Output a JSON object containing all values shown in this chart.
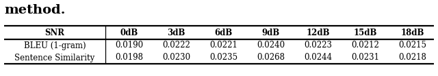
{
  "title_text": "method.",
  "columns": [
    "SNR",
    "0dB",
    "3dB",
    "6dB",
    "9dB",
    "12dB",
    "15dB",
    "18dB"
  ],
  "rows": [
    [
      "BLEU (1-gram)",
      "0.0190",
      "0.0222",
      "0.0221",
      "0.0240",
      "0.0223",
      "0.0212",
      "0.0215"
    ],
    [
      "Sentence Similarity",
      "0.0198",
      "0.0230",
      "0.0235",
      "0.0268",
      "0.0244",
      "0.0231",
      "0.0218"
    ]
  ],
  "background_color": "#ffffff",
  "font_size": 8.5,
  "title_font_size": 14
}
